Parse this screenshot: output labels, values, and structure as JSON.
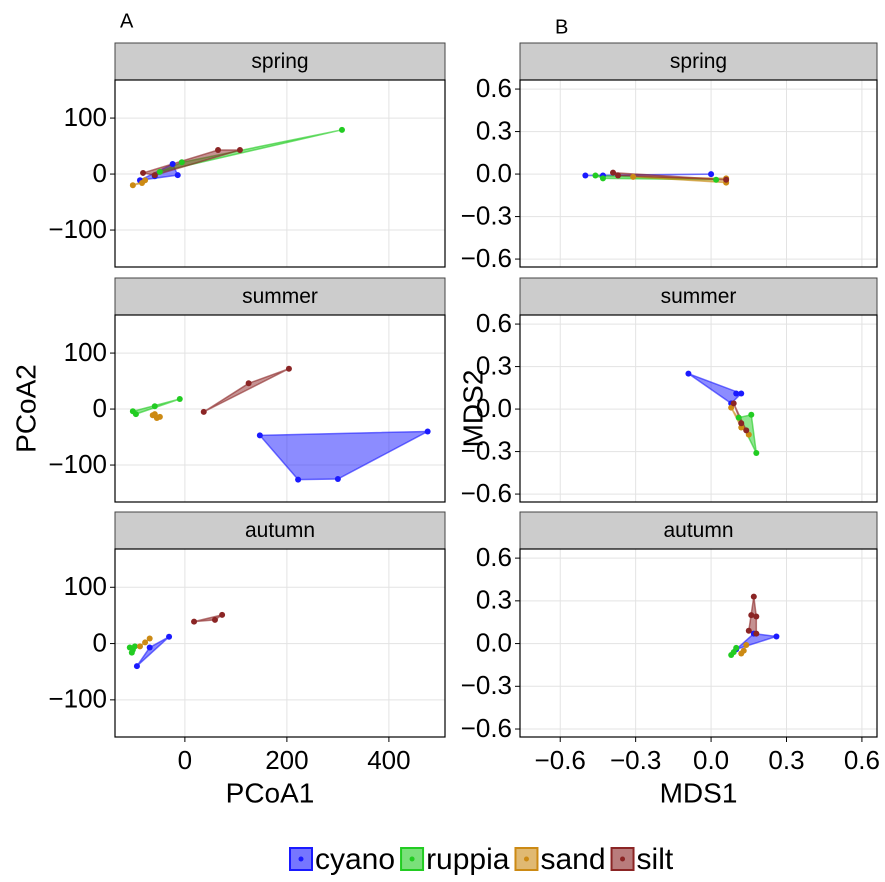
{
  "chart_data": [
    {
      "type": "scatter",
      "tag": "A",
      "title": "spring",
      "xlim": [
        -137,
        510
      ],
      "ylim": [
        -166,
        168
      ],
      "xticks": [
        0,
        200,
        400
      ],
      "yticks": [
        {
          "value": -100,
          "label": "−100"
        },
        0,
        100
      ],
      "grid": true,
      "series": [
        {
          "name": "cyano",
          "color": "#1a1aff",
          "x": [
            -88,
            -24,
            -14,
            -59
          ],
          "values": [
            -11,
            18,
            -2,
            -4
          ]
        },
        {
          "name": "ruppia",
          "color": "#22cc22",
          "x": [
            -6,
            308,
            -49
          ],
          "values": [
            21,
            79,
            4
          ]
        },
        {
          "name": "sand",
          "color": "#cc8a14",
          "x": [
            -102,
            -84,
            -78
          ],
          "values": [
            -20,
            -16,
            -11
          ]
        },
        {
          "name": "silt",
          "color": "#8b2525",
          "x": [
            -82,
            65,
            108,
            -59
          ],
          "values": [
            2,
            43,
            43,
            -2
          ]
        }
      ]
    },
    {
      "type": "scatter",
      "title": "summer",
      "y_label": "PCoA2",
      "xlim": [
        -137,
        510
      ],
      "ylim": [
        -166,
        168
      ],
      "xticks": [
        0,
        200,
        400
      ],
      "yticks": [
        {
          "value": -100,
          "label": "−100"
        },
        0,
        100
      ],
      "grid": true,
      "series": [
        {
          "name": "cyano",
          "color": "#1a1aff",
          "x": [
            147,
            222,
            300,
            476
          ],
          "values": [
            -47,
            -126,
            -125,
            -40
          ]
        },
        {
          "name": "ruppia",
          "color": "#22cc22",
          "x": [
            -102,
            -96,
            -59,
            -10
          ],
          "values": [
            -4,
            -9,
            5,
            18
          ]
        },
        {
          "name": "sand",
          "color": "#cc8a14",
          "x": [
            -59,
            -49,
            -55,
            -63
          ],
          "values": [
            -9,
            -14,
            -16,
            -11
          ]
        },
        {
          "name": "silt",
          "color": "#8b2525",
          "x": [
            37,
            125,
            204
          ],
          "values": [
            -5,
            46,
            72
          ]
        }
      ]
    },
    {
      "type": "scatter",
      "title": "autumn",
      "x_label": "PCoA1",
      "xlim": [
        -137,
        510
      ],
      "ylim": [
        -166,
        168
      ],
      "xticks": [
        0,
        200,
        400
      ],
      "yticks": [
        {
          "value": -100,
          "label": "−100"
        },
        0,
        100
      ],
      "grid": true,
      "series": [
        {
          "name": "cyano",
          "color": "#1a1aff",
          "x": [
            -94,
            -69,
            -31
          ],
          "values": [
            -40,
            -7,
            12
          ]
        },
        {
          "name": "ruppia",
          "color": "#22cc22",
          "x": [
            -108,
            -104,
            -98,
            -102
          ],
          "values": [
            -7,
            -16,
            -5,
            -11
          ]
        },
        {
          "name": "sand",
          "color": "#cc8a14",
          "x": [
            -88,
            -78,
            -69
          ],
          "values": [
            -5,
            2,
            9
          ]
        },
        {
          "name": "silt",
          "color": "#8b2525",
          "x": [
            18,
            59,
            73
          ],
          "values": [
            39,
            42,
            51
          ]
        }
      ]
    },
    {
      "type": "scatter",
      "tag": "B",
      "title": "spring",
      "xlim": [
        -0.76,
        0.66
      ],
      "ylim": [
        -0.656,
        0.664
      ],
      "xticks": [
        {
          "value": -0.6,
          "label": "−0.6"
        },
        {
          "value": -0.3,
          "label": "−0.3"
        },
        {
          "value": 0,
          "label": "0.0"
        },
        0.3,
        0.6
      ],
      "yticks": [
        {
          "value": -0.6,
          "label": "−0.6"
        },
        {
          "value": -0.3,
          "label": "−0.3"
        },
        {
          "value": 0,
          "label": "0.0"
        },
        0.3,
        0.6
      ],
      "grid": true,
      "series": [
        {
          "name": "cyano",
          "color": "#1a1aff",
          "x": [
            -0.5,
            0.0,
            -0.43
          ],
          "values": [
            -0.01,
            0.0,
            -0.01
          ]
        },
        {
          "name": "ruppia",
          "color": "#22cc22",
          "x": [
            -0.46,
            -0.43,
            0.02
          ],
          "values": [
            -0.01,
            -0.03,
            -0.04
          ]
        },
        {
          "name": "sand",
          "color": "#cc8a14",
          "x": [
            -0.31,
            0.06,
            0.06
          ],
          "values": [
            -0.02,
            -0.03,
            -0.06
          ]
        },
        {
          "name": "silt",
          "color": "#8b2525",
          "x": [
            -0.39,
            -0.37,
            0.06
          ],
          "values": [
            0.01,
            -0.01,
            -0.04
          ]
        }
      ]
    },
    {
      "type": "scatter",
      "title": "summer",
      "y_label": "MDS2",
      "xlim": [
        -0.76,
        0.66
      ],
      "ylim": [
        -0.656,
        0.664
      ],
      "xticks": [
        {
          "value": -0.6,
          "label": "−0.6"
        },
        {
          "value": -0.3,
          "label": "−0.3"
        },
        {
          "value": 0,
          "label": "0.0"
        },
        0.3,
        0.6
      ],
      "yticks": [
        {
          "value": -0.6,
          "label": "−0.6"
        },
        {
          "value": -0.3,
          "label": "−0.3"
        },
        {
          "value": 0,
          "label": "0.0"
        },
        0.3,
        0.6
      ],
      "grid": true,
      "series": [
        {
          "name": "cyano",
          "color": "#1a1aff",
          "x": [
            -0.09,
            0.1,
            0.12,
            0.08
          ],
          "values": [
            0.25,
            0.11,
            0.11,
            0.04
          ]
        },
        {
          "name": "ruppia",
          "color": "#22cc22",
          "x": [
            0.18,
            0.16,
            0.11
          ],
          "values": [
            -0.31,
            -0.04,
            -0.06
          ]
        },
        {
          "name": "sand",
          "color": "#cc8a14",
          "x": [
            0.08,
            0.12,
            0.15
          ],
          "values": [
            0.01,
            -0.13,
            -0.18
          ]
        },
        {
          "name": "silt",
          "color": "#8b2525",
          "x": [
            0.09,
            0.12,
            0.14
          ],
          "values": [
            0.04,
            -0.1,
            -0.15
          ]
        }
      ]
    },
    {
      "type": "scatter",
      "title": "autumn",
      "x_label": "MDS1",
      "xlim": [
        -0.76,
        0.66
      ],
      "ylim": [
        -0.656,
        0.664
      ],
      "xticks": [
        {
          "value": -0.6,
          "label": "−0.6"
        },
        {
          "value": -0.3,
          "label": "−0.3"
        },
        {
          "value": 0,
          "label": "0.0"
        },
        0.3,
        0.6
      ],
      "yticks": [
        {
          "value": -0.6,
          "label": "−0.6"
        },
        {
          "value": -0.3,
          "label": "−0.3"
        },
        {
          "value": 0,
          "label": "0.0"
        },
        0.3,
        0.6
      ],
      "grid": true,
      "series": [
        {
          "name": "cyano",
          "color": "#1a1aff",
          "x": [
            0.1,
            0.26,
            0.17
          ],
          "values": [
            -0.04,
            0.05,
            0.07
          ]
        },
        {
          "name": "ruppia",
          "color": "#22cc22",
          "x": [
            0.08,
            0.09,
            0.1
          ],
          "values": [
            -0.08,
            -0.06,
            -0.03
          ]
        },
        {
          "name": "sand",
          "color": "#cc8a14",
          "x": [
            0.12,
            0.13,
            0.14
          ],
          "values": [
            -0.07,
            -0.05,
            -0.01
          ]
        },
        {
          "name": "silt",
          "color": "#8b2525",
          "x": [
            0.17,
            0.16,
            0.15,
            0.18,
            0.18
          ],
          "values": [
            0.33,
            0.2,
            0.09,
            0.19,
            0.07
          ]
        }
      ]
    }
  ]
}
